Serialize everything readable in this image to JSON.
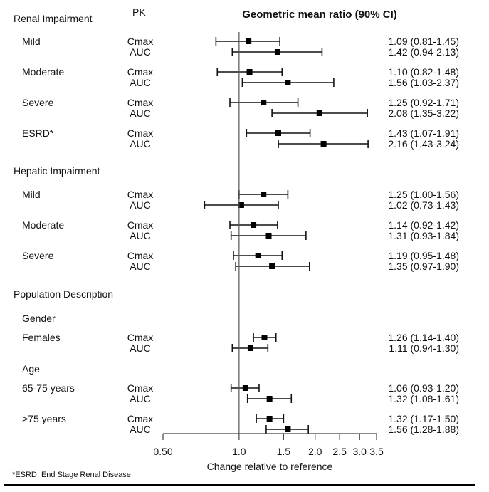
{
  "chart_data": {
    "type": "forest",
    "title": "Geometric mean ratio (90% CI)",
    "pk_header": "PK",
    "xlabel": "Change relative to reference",
    "xscale": "log",
    "xlim": [
      0.5,
      3.5
    ],
    "reference_line": 1.0,
    "xticks": [
      0.5,
      1.0,
      1.5,
      2.0,
      2.5,
      3.0,
      3.5
    ],
    "xtick_labels": [
      "0.50",
      "1.0",
      "1.5",
      "2.0",
      "2.5",
      "3.0",
      "3.5"
    ],
    "footnote": "*ESRD: End Stage Renal Disease",
    "sections": [
      {
        "label": "Renal Impairment",
        "subheaders": [],
        "groups": [
          {
            "label": "Mild",
            "rows": [
              {
                "pk": "Cmax",
                "gmr": 1.09,
                "lo": 0.81,
                "hi": 1.45,
                "text": "1.09 (0.81-1.45)"
              },
              {
                "pk": "AUC",
                "gmr": 1.42,
                "lo": 0.94,
                "hi": 2.13,
                "text": "1.42 (0.94-2.13)"
              }
            ]
          },
          {
            "label": "Moderate",
            "rows": [
              {
                "pk": "Cmax",
                "gmr": 1.1,
                "lo": 0.82,
                "hi": 1.48,
                "text": "1.10 (0.82-1.48)"
              },
              {
                "pk": "AUC",
                "gmr": 1.56,
                "lo": 1.03,
                "hi": 2.37,
                "text": "1.56 (1.03-2.37)"
              }
            ]
          },
          {
            "label": "Severe",
            "rows": [
              {
                "pk": "Cmax",
                "gmr": 1.25,
                "lo": 0.92,
                "hi": 1.71,
                "text": "1.25 (0.92-1.71)"
              },
              {
                "pk": "AUC",
                "gmr": 2.08,
                "lo": 1.35,
                "hi": 3.22,
                "text": "2.08 (1.35-3.22)"
              }
            ]
          },
          {
            "label": "ESRD*",
            "rows": [
              {
                "pk": "Cmax",
                "gmr": 1.43,
                "lo": 1.07,
                "hi": 1.91,
                "text": "1.43 (1.07-1.91)"
              },
              {
                "pk": "AUC",
                "gmr": 2.16,
                "lo": 1.43,
                "hi": 3.24,
                "text": "2.16 (1.43-3.24)"
              }
            ]
          }
        ]
      },
      {
        "label": "Hepatic Impairment",
        "groups": [
          {
            "label": "Mild",
            "rows": [
              {
                "pk": "Cmax",
                "gmr": 1.25,
                "lo": 1.0,
                "hi": 1.56,
                "text": "1.25 (1.00-1.56)"
              },
              {
                "pk": "AUC",
                "gmr": 1.02,
                "lo": 0.73,
                "hi": 1.43,
                "text": "1.02 (0.73-1.43)"
              }
            ]
          },
          {
            "label": "Moderate",
            "rows": [
              {
                "pk": "Cmax",
                "gmr": 1.14,
                "lo": 0.92,
                "hi": 1.42,
                "text": "1.14 (0.92-1.42)"
              },
              {
                "pk": "AUC",
                "gmr": 1.31,
                "lo": 0.93,
                "hi": 1.84,
                "text": "1.31 (0.93-1.84)"
              }
            ]
          },
          {
            "label": "Severe",
            "rows": [
              {
                "pk": "Cmax",
                "gmr": 1.19,
                "lo": 0.95,
                "hi": 1.48,
                "text": "1.19 (0.95-1.48)"
              },
              {
                "pk": "AUC",
                "gmr": 1.35,
                "lo": 0.97,
                "hi": 1.9,
                "text": "1.35 (0.97-1.90)"
              }
            ]
          }
        ]
      },
      {
        "label": "Population Description",
        "groups": [
          {
            "label": "Females",
            "subheader": "Gender",
            "rows": [
              {
                "pk": "Cmax",
                "gmr": 1.26,
                "lo": 1.14,
                "hi": 1.4,
                "text": "1.26 (1.14-1.40)"
              },
              {
                "pk": "AUC",
                "gmr": 1.11,
                "lo": 0.94,
                "hi": 1.3,
                "text": "1.11 (0.94-1.30)"
              }
            ]
          },
          {
            "label": "65-75 years",
            "subheader": "Age",
            "rows": [
              {
                "pk": "Cmax",
                "gmr": 1.06,
                "lo": 0.93,
                "hi": 1.2,
                "text": "1.06 (0.93-1.20)"
              },
              {
                "pk": "AUC",
                "gmr": 1.32,
                "lo": 1.08,
                "hi": 1.61,
                "text": "1.32 (1.08-1.61)"
              }
            ]
          },
          {
            "label": ">75 years",
            "rows": [
              {
                "pk": "Cmax",
                "gmr": 1.32,
                "lo": 1.17,
                "hi": 1.5,
                "text": "1.32 (1.17-1.50)"
              },
              {
                "pk": "AUC",
                "gmr": 1.56,
                "lo": 1.28,
                "hi": 1.88,
                "text": "1.56 (1.28-1.88)"
              }
            ]
          }
        ]
      }
    ]
  }
}
